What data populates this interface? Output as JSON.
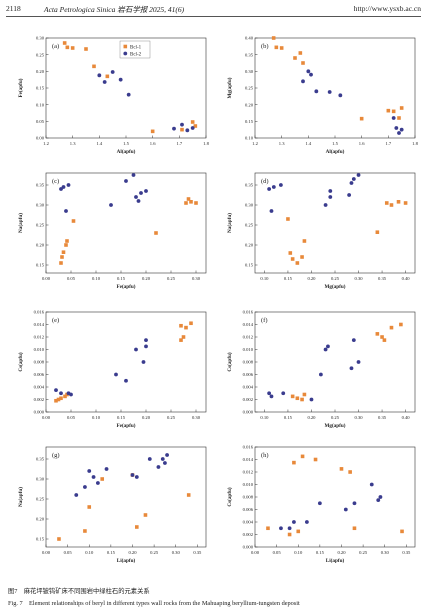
{
  "header": {
    "page_number": "2118",
    "journal": "Acta Petrologica Sinica 岩石学报 2025, 41(6)",
    "url": "http://www.ysxb.ac.cn"
  },
  "colors": {
    "bcl1": "#E8893A",
    "bcl2": "#3A3C8E"
  },
  "captions": {
    "cn": "图7　麻花坪铍钨矿床不同围岩中绿柱石的元素关系",
    "en": "Fig. 7　Element relationships of beryl in different types wall rocks from the Mahuaping beryllium-tungsten deposit"
  },
  "chart_data": [
    {
      "panel": "(a)",
      "type": "scatter",
      "xlabel": "Al(apfu)",
      "ylabel": "Fe(apfu)",
      "xlim": [
        1.2,
        1.8
      ],
      "ylim": [
        0.0,
        0.3
      ],
      "xticks": [
        "1.2",
        "1.3",
        "1.4",
        "1.5",
        "1.6",
        "1.7",
        "1.8"
      ],
      "yticks": [
        "0.00",
        "0.05",
        "0.10",
        "0.15",
        "0.20",
        "0.25",
        "0.30"
      ],
      "legend": [
        "Bcl-1",
        "Bcl-2"
      ],
      "series": [
        {
          "name": "Bcl-1",
          "points": [
            [
              1.27,
              0.285
            ],
            [
              1.28,
              0.272
            ],
            [
              1.3,
              0.27
            ],
            [
              1.35,
              0.267
            ],
            [
              1.38,
              0.215
            ],
            [
              1.43,
              0.185
            ],
            [
              1.6,
              0.02
            ],
            [
              1.75,
              0.048
            ],
            [
              1.76,
              0.036
            ],
            [
              1.71,
              0.025
            ]
          ]
        },
        {
          "name": "Bcl-2",
          "points": [
            [
              1.4,
              0.188
            ],
            [
              1.42,
              0.168
            ],
            [
              1.45,
              0.198
            ],
            [
              1.48,
              0.175
            ],
            [
              1.51,
              0.13
            ],
            [
              1.68,
              0.028
            ],
            [
              1.71,
              0.04
            ],
            [
              1.73,
              0.023
            ],
            [
              1.75,
              0.03
            ]
          ]
        }
      ]
    },
    {
      "panel": "(b)",
      "type": "scatter",
      "xlabel": "Al(apfu)",
      "ylabel": "Mg(apfu)",
      "xlim": [
        1.2,
        1.8
      ],
      "ylim": [
        0.1,
        0.4
      ],
      "xticks": [
        "1.2",
        "1.3",
        "1.4",
        "1.5",
        "1.6",
        "1.7",
        "1.8"
      ],
      "yticks": [
        "0.10",
        "0.15",
        "0.20",
        "0.25",
        "0.30",
        "0.35",
        "0.40"
      ],
      "series": [
        {
          "name": "Bcl-1",
          "points": [
            [
              1.27,
              0.4
            ],
            [
              1.28,
              0.372
            ],
            [
              1.3,
              0.37
            ],
            [
              1.35,
              0.34
            ],
            [
              1.37,
              0.355
            ],
            [
              1.38,
              0.325
            ],
            [
              1.6,
              0.158
            ],
            [
              1.7,
              0.182
            ],
            [
              1.72,
              0.18
            ],
            [
              1.74,
              0.16
            ],
            [
              1.75,
              0.19
            ]
          ]
        },
        {
          "name": "Bcl-2",
          "points": [
            [
              1.4,
              0.3
            ],
            [
              1.41,
              0.29
            ],
            [
              1.38,
              0.27
            ],
            [
              1.43,
              0.24
            ],
            [
              1.48,
              0.238
            ],
            [
              1.52,
              0.228
            ],
            [
              1.72,
              0.16
            ],
            [
              1.73,
              0.13
            ],
            [
              1.74,
              0.115
            ],
            [
              1.75,
              0.125
            ]
          ]
        }
      ]
    },
    {
      "panel": "(c)",
      "type": "scatter",
      "xlabel": "Fe(apfu)",
      "ylabel": "Na(apfu)",
      "xlim": [
        0.0,
        0.32
      ],
      "ylim": [
        0.13,
        0.38
      ],
      "xticks": [
        "0.00",
        "0.05",
        "0.10",
        "0.15",
        "0.20",
        "0.25",
        "0.30"
      ],
      "yticks": [
        "0.15",
        "0.20",
        "0.25",
        "0.30",
        "0.35"
      ],
      "series": [
        {
          "name": "Bcl-1",
          "points": [
            [
              0.03,
              0.155
            ],
            [
              0.032,
              0.17
            ],
            [
              0.035,
              0.182
            ],
            [
              0.04,
              0.2
            ],
            [
              0.042,
              0.21
            ],
            [
              0.055,
              0.26
            ],
            [
              0.22,
              0.23
            ],
            [
              0.28,
              0.305
            ],
            [
              0.285,
              0.315
            ],
            [
              0.29,
              0.308
            ],
            [
              0.3,
              0.305
            ]
          ]
        },
        {
          "name": "Bcl-2",
          "points": [
            [
              0.03,
              0.34
            ],
            [
              0.035,
              0.345
            ],
            [
              0.045,
              0.35
            ],
            [
              0.04,
              0.285
            ],
            [
              0.13,
              0.3
            ],
            [
              0.16,
              0.36
            ],
            [
              0.175,
              0.375
            ],
            [
              0.18,
              0.32
            ],
            [
              0.19,
              0.33
            ],
            [
              0.2,
              0.335
            ],
            [
              0.185,
              0.31
            ]
          ]
        }
      ]
    },
    {
      "panel": "(d)",
      "type": "scatter",
      "xlabel": "Mg(apfu)",
      "ylabel": "Na(apfu)",
      "xlim": [
        0.08,
        0.42
      ],
      "ylim": [
        0.13,
        0.38
      ],
      "xticks": [
        "0.10",
        "0.15",
        "0.20",
        "0.25",
        "0.30",
        "0.35",
        "0.40"
      ],
      "yticks": [
        "0.15",
        "0.20",
        "0.25",
        "0.30",
        "0.35"
      ],
      "series": [
        {
          "name": "Bcl-1",
          "points": [
            [
              0.15,
              0.265
            ],
            [
              0.155,
              0.18
            ],
            [
              0.16,
              0.165
            ],
            [
              0.17,
              0.155
            ],
            [
              0.18,
              0.17
            ],
            [
              0.185,
              0.21
            ],
            [
              0.34,
              0.232
            ],
            [
              0.36,
              0.305
            ],
            [
              0.37,
              0.3
            ],
            [
              0.385,
              0.308
            ],
            [
              0.4,
              0.305
            ]
          ]
        },
        {
          "name": "Bcl-2",
          "points": [
            [
              0.11,
              0.34
            ],
            [
              0.12,
              0.345
            ],
            [
              0.135,
              0.35
            ],
            [
              0.115,
              0.285
            ],
            [
              0.23,
              0.3
            ],
            [
              0.24,
              0.32
            ],
            [
              0.24,
              0.335
            ],
            [
              0.28,
              0.325
            ],
            [
              0.29,
              0.365
            ],
            [
              0.3,
              0.375
            ],
            [
              0.285,
              0.355
            ]
          ]
        }
      ]
    },
    {
      "panel": "(e)",
      "type": "scatter",
      "xlabel": "Fe(apfu)",
      "ylabel": "Cs(apfu)",
      "xlim": [
        0.0,
        0.32
      ],
      "ylim": [
        0.0,
        0.016
      ],
      "xticks": [
        "0.00",
        "0.05",
        "0.10",
        "0.15",
        "0.20",
        "0.25",
        "0.30"
      ],
      "yticks": [
        "0.000",
        "0.002",
        "0.004",
        "0.006",
        "0.008",
        "0.010",
        "0.012",
        "0.014",
        "0.016"
      ],
      "series": [
        {
          "name": "Bcl-1",
          "points": [
            [
              0.02,
              0.0018
            ],
            [
              0.025,
              0.002
            ],
            [
              0.03,
              0.0022
            ],
            [
              0.038,
              0.0025
            ],
            [
              0.042,
              0.0028
            ],
            [
              0.27,
              0.0115
            ],
            [
              0.275,
              0.012
            ],
            [
              0.27,
              0.0138
            ],
            [
              0.29,
              0.0142
            ],
            [
              0.28,
              0.0135
            ]
          ]
        },
        {
          "name": "Bcl-2",
          "points": [
            [
              0.02,
              0.0035
            ],
            [
              0.03,
              0.003
            ],
            [
              0.045,
              0.003
            ],
            [
              0.05,
              0.0028
            ],
            [
              0.14,
              0.006
            ],
            [
              0.16,
              0.005
            ],
            [
              0.18,
              0.01
            ],
            [
              0.2,
              0.0105
            ],
            [
              0.2,
              0.0115
            ],
            [
              0.195,
              0.008
            ]
          ]
        }
      ]
    },
    {
      "panel": "(f)",
      "type": "scatter",
      "xlabel": "Mg(apfu)",
      "ylabel": "Cs(apfu)",
      "xlim": [
        0.08,
        0.42
      ],
      "ylim": [
        0.0,
        0.016
      ],
      "xticks": [
        "0.10",
        "0.15",
        "0.20",
        "0.25",
        "0.30",
        "0.35",
        "0.40"
      ],
      "yticks": [
        "0.000",
        "0.002",
        "0.004",
        "0.006",
        "0.008",
        "0.010",
        "0.012",
        "0.014",
        "0.016"
      ],
      "series": [
        {
          "name": "Bcl-1",
          "points": [
            [
              0.16,
              0.0025
            ],
            [
              0.17,
              0.0022
            ],
            [
              0.18,
              0.002
            ],
            [
              0.185,
              0.0028
            ],
            [
              0.34,
              0.0125
            ],
            [
              0.35,
              0.012
            ],
            [
              0.355,
              0.0115
            ],
            [
              0.37,
              0.0135
            ],
            [
              0.39,
              0.014
            ]
          ]
        },
        {
          "name": "Bcl-2",
          "points": [
            [
              0.11,
              0.003
            ],
            [
              0.115,
              0.0025
            ],
            [
              0.14,
              0.003
            ],
            [
              0.2,
              0.002
            ],
            [
              0.22,
              0.006
            ],
            [
              0.23,
              0.01
            ],
            [
              0.235,
              0.0105
            ],
            [
              0.29,
              0.0115
            ],
            [
              0.285,
              0.007
            ],
            [
              0.3,
              0.008
            ]
          ]
        }
      ]
    },
    {
      "panel": "(g)",
      "type": "scatter",
      "xlabel": "Li(apfu)",
      "ylabel": "Na(apfu)",
      "xlim": [
        0.0,
        0.37
      ],
      "ylim": [
        0.13,
        0.38
      ],
      "xticks": [
        "0.00",
        "0.05",
        "0.10",
        "0.15",
        "0.20",
        "0.25",
        "0.30",
        "0.35"
      ],
      "yticks": [
        "0.15",
        "0.20",
        "0.25",
        "0.30",
        "0.35"
      ],
      "series": [
        {
          "name": "Bcl-1",
          "points": [
            [
              0.03,
              0.15
            ],
            [
              0.09,
              0.17
            ],
            [
              0.1,
              0.23
            ],
            [
              0.13,
              0.3
            ],
            [
              0.2,
              0.31
            ],
            [
              0.21,
              0.18
            ],
            [
              0.23,
              0.21
            ],
            [
              0.33,
              0.26
            ]
          ]
        },
        {
          "name": "Bcl-2",
          "points": [
            [
              0.07,
              0.26
            ],
            [
              0.09,
              0.28
            ],
            [
              0.1,
              0.32
            ],
            [
              0.11,
              0.305
            ],
            [
              0.12,
              0.29
            ],
            [
              0.14,
              0.325
            ],
            [
              0.2,
              0.31
            ],
            [
              0.21,
              0.305
            ],
            [
              0.24,
              0.35
            ],
            [
              0.26,
              0.33
            ],
            [
              0.27,
              0.35
            ],
            [
              0.28,
              0.36
            ],
            [
              0.275,
              0.34
            ]
          ]
        }
      ]
    },
    {
      "panel": "(h)",
      "type": "scatter",
      "xlabel": "Li(apfu)",
      "ylabel": "Cs(apfu)",
      "xlim": [
        0.0,
        0.37
      ],
      "ylim": [
        0.0,
        0.016
      ],
      "xticks": [
        "0.00",
        "0.05",
        "0.10",
        "0.15",
        "0.20",
        "0.25",
        "0.30",
        "0.35"
      ],
      "yticks": [
        "0.000",
        "0.002",
        "0.004",
        "0.006",
        "0.008",
        "0.010",
        "0.012",
        "0.014",
        "0.016"
      ],
      "series": [
        {
          "name": "Bcl-1",
          "points": [
            [
              0.03,
              0.003
            ],
            [
              0.08,
              0.002
            ],
            [
              0.1,
              0.0025
            ],
            [
              0.09,
              0.0135
            ],
            [
              0.11,
              0.0145
            ],
            [
              0.14,
              0.014
            ],
            [
              0.2,
              0.0125
            ],
            [
              0.22,
              0.012
            ],
            [
              0.23,
              0.003
            ],
            [
              0.34,
              0.0025
            ]
          ]
        },
        {
          "name": "Bcl-2",
          "points": [
            [
              0.06,
              0.003
            ],
            [
              0.08,
              0.003
            ],
            [
              0.09,
              0.004
            ],
            [
              0.12,
              0.004
            ],
            [
              0.15,
              0.007
            ],
            [
              0.21,
              0.006
            ],
            [
              0.23,
              0.007
            ],
            [
              0.27,
              0.01
            ],
            [
              0.29,
              0.008
            ],
            [
              0.285,
              0.0075
            ]
          ]
        }
      ]
    }
  ]
}
